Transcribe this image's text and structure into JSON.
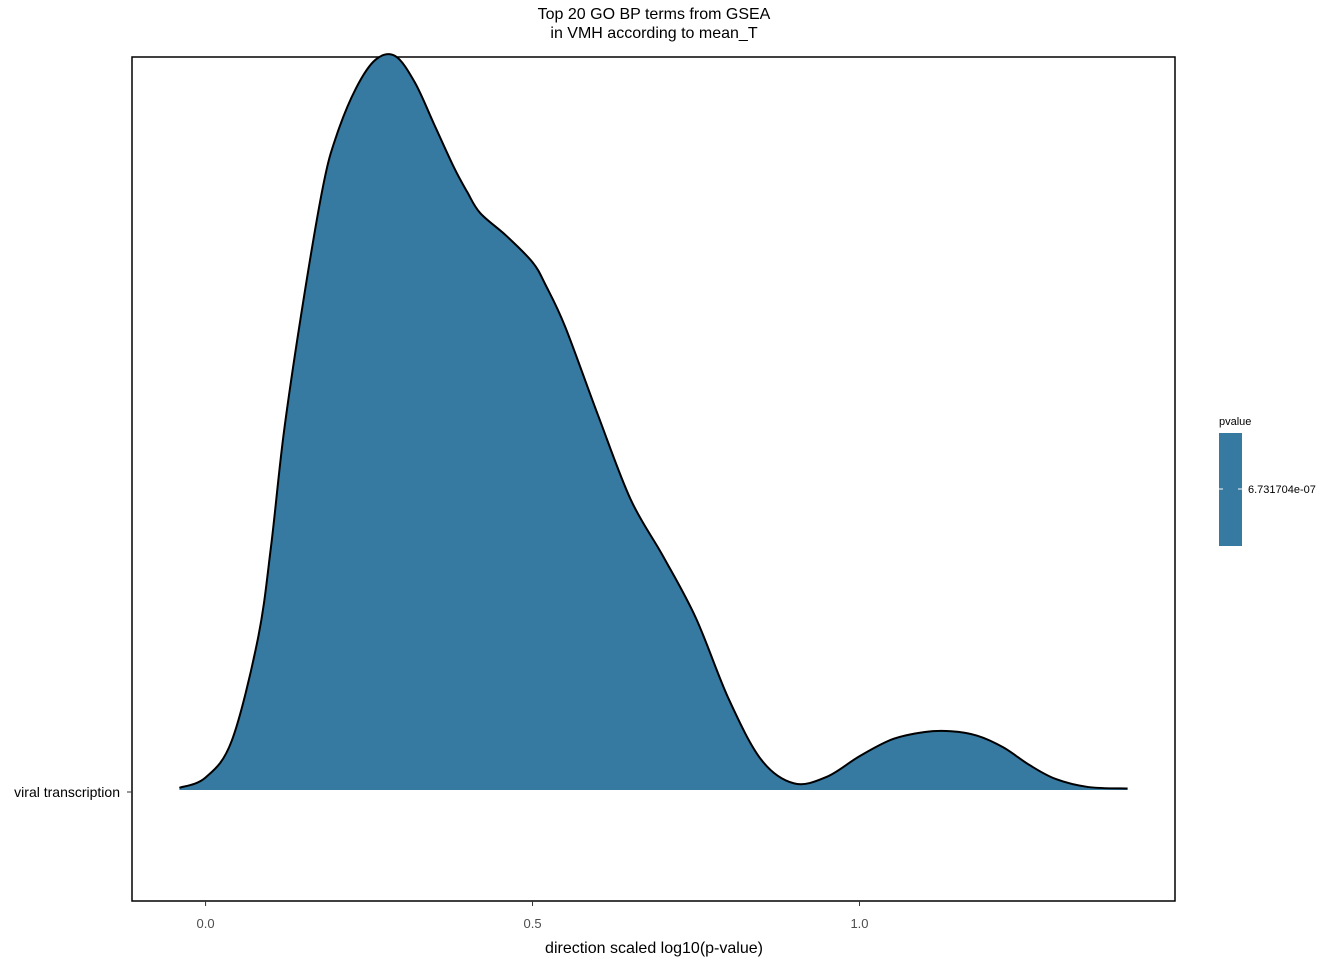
{
  "chart_data": {
    "type": "area",
    "title_line1": "Top 20 GO BP terms from GSEA",
    "title_line2": "in VMH according to mean_T",
    "xlabel": "direction scaled log10(p-value)",
    "ylabel": "",
    "xlim": [
      -0.1125,
      1.4825
    ],
    "x_ticks": [
      0.0,
      0.5,
      1.0
    ],
    "x_tick_labels": [
      "0.0",
      "0.5",
      "1.0"
    ],
    "categories": [
      "viral transcription"
    ],
    "grid": false,
    "legend": {
      "title": "pvalue",
      "labels": [
        "6.731704e-07"
      ],
      "placement": "right"
    },
    "fill_color": "#3679a1",
    "series": [
      {
        "category": "viral transcription",
        "pvalue": "6.731704e-07",
        "x": [
          -0.04,
          0.0,
          0.04,
          0.08,
          0.1,
          0.12,
          0.15,
          0.18,
          0.2,
          0.23,
          0.26,
          0.29,
          0.32,
          0.35,
          0.38,
          0.4,
          0.42,
          0.46,
          0.5,
          0.52,
          0.55,
          0.6,
          0.65,
          0.7,
          0.75,
          0.8,
          0.85,
          0.9,
          0.95,
          1.0,
          1.05,
          1.1,
          1.14,
          1.18,
          1.22,
          1.26,
          1.3,
          1.35,
          1.41
        ],
        "density": [
          0.003,
          0.017,
          0.067,
          0.206,
          0.331,
          0.489,
          0.669,
          0.824,
          0.891,
          0.956,
          0.995,
          1.0,
          0.964,
          0.906,
          0.848,
          0.815,
          0.786,
          0.755,
          0.719,
          0.688,
          0.631,
          0.511,
          0.396,
          0.318,
          0.234,
          0.124,
          0.041,
          0.009,
          0.018,
          0.046,
          0.069,
          0.079,
          0.08,
          0.074,
          0.058,
          0.034,
          0.015,
          0.004,
          0.002
        ]
      }
    ]
  }
}
